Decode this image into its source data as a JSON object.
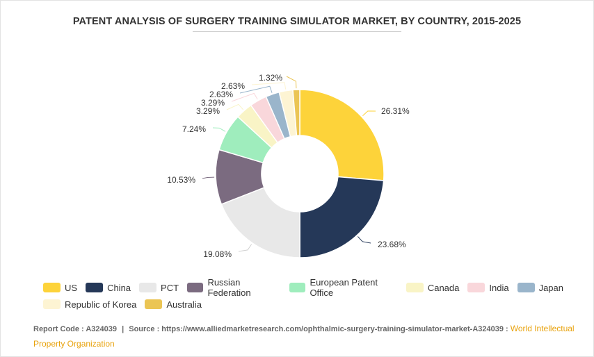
{
  "title": "PATENT ANALYSIS OF SURGERY TRAINING SIMULATOR MARKET, BY COUNTRY, 2015-2025",
  "chart_data": {
    "type": "pie",
    "donut": true,
    "categories": [
      "US",
      "China",
      "PCT",
      "Russian Federation",
      "European Patent Office",
      "Canada",
      "India",
      "Japan",
      "Republic of Korea",
      "Australia"
    ],
    "values": [
      26.31,
      23.68,
      19.08,
      10.53,
      7.24,
      3.29,
      3.29,
      2.63,
      2.63,
      1.32
    ],
    "labels": [
      "26.31%",
      "23.68%",
      "19.08%",
      "10.53%",
      "7.24%",
      "3.29%",
      "3.29%",
      "2.63%",
      "2.63%",
      "1.32%"
    ],
    "colors": [
      "#fdd33a",
      "#253858",
      "#e8e8e8",
      "#7b6b80",
      "#9fedbd",
      "#f9f4c6",
      "#f9d7db",
      "#9ab5cb",
      "#fdf4d3",
      "#ebc554"
    ],
    "legend": "bottom"
  },
  "footer": {
    "report_code": "Report Code : A324039",
    "separator": "|",
    "source": "Source : https://www.alliedmarketresearch.com/ophthalmic-surgery-training-simulator-market-A324039 :",
    "org": "World Intellectual Property Organization"
  }
}
